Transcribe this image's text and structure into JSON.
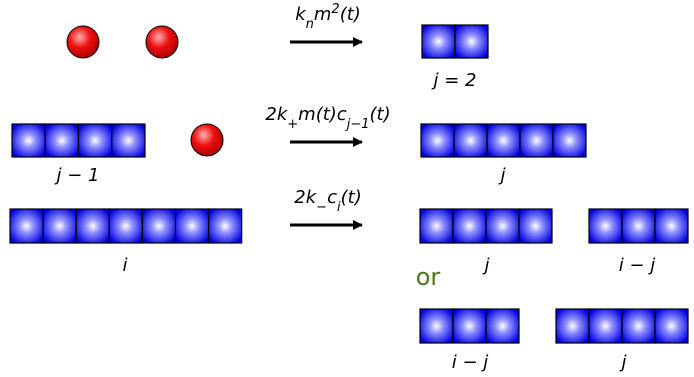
{
  "reactions": [
    {
      "rate": [
        "k",
        "n",
        "m",
        "2",
        "(t)"
      ],
      "products": [
        "j = 2"
      ]
    },
    {
      "rate": [
        "2k",
        "+",
        "m(t)c",
        "j−1",
        "(t)"
      ],
      "reactants": [
        "j − 1"
      ],
      "products": [
        "j"
      ]
    },
    {
      "rate": [
        "2k",
        "−",
        "c",
        "i",
        "(t)"
      ],
      "reactants": [
        "i"
      ],
      "products": [
        "j",
        "i − j"
      ],
      "alternative": "or",
      "alternative_products": [
        "i − j",
        "j"
      ]
    }
  ]
}
